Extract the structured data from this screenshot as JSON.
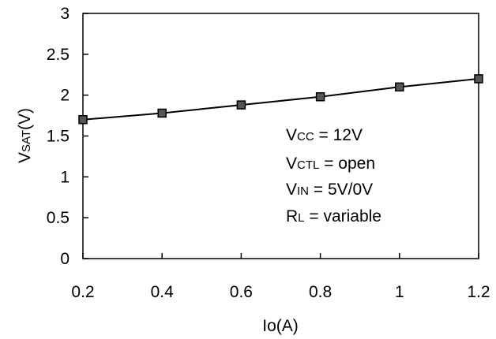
{
  "chart_data": {
    "type": "line",
    "title": "",
    "xlabel": "Io(A)",
    "ylabel_main": "V",
    "ylabel_sub": "SAT",
    "ylabel_unit": "(V)",
    "xlim": [
      0.2,
      1.2
    ],
    "ylim": [
      0,
      3
    ],
    "xticks": [
      0.2,
      0.4,
      0.6,
      0.8,
      1.0,
      1.2
    ],
    "xtick_labels": [
      "0.2",
      "0.4",
      "0.6",
      "0.8",
      "1",
      "1.2"
    ],
    "yticks": [
      0,
      0.5,
      1,
      1.5,
      2,
      2.5,
      3
    ],
    "ytick_labels": [
      "0",
      "0.5",
      "1",
      "1.5",
      "2",
      "2.5",
      "3"
    ],
    "grid": false,
    "legend": "none",
    "series": [
      {
        "x": [
          0.2,
          0.4,
          0.6,
          0.8,
          1.0,
          1.2
        ],
        "values": [
          1.7,
          1.78,
          1.88,
          1.98,
          2.1,
          2.2
        ],
        "color": "#000000",
        "marker": "square",
        "marker_color": "#555555"
      }
    ],
    "annotations": [
      {
        "main": "V",
        "sub": "CC",
        "rest": " = 12V"
      },
      {
        "main": "V",
        "sub": "CTL",
        "rest": " = open"
      },
      {
        "main": "V",
        "sub": "IN",
        "rest": " = 5V/0V"
      },
      {
        "main": "R",
        "sub": "L",
        "rest": " = variable"
      }
    ]
  }
}
